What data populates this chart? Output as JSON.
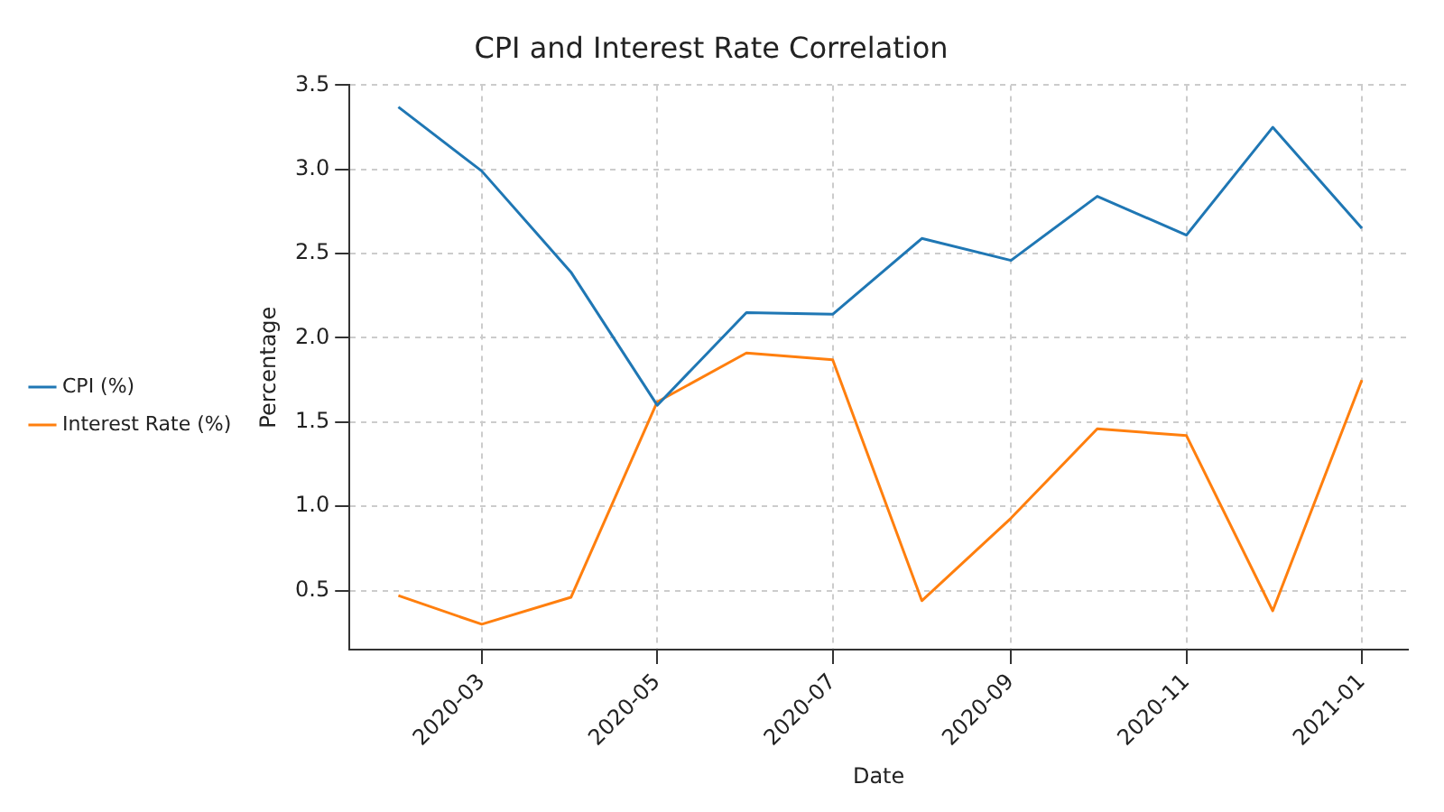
{
  "chart_data": {
    "type": "line",
    "title": "CPI and Interest Rate Correlation",
    "xlabel": "Date",
    "ylabel": "Percentage",
    "x": [
      "2020-02-01",
      "2020-03-01",
      "2020-04-01",
      "2020-05-01",
      "2020-06-01",
      "2020-07-01",
      "2020-08-01",
      "2020-09-01",
      "2020-10-01",
      "2020-11-01",
      "2020-12-01",
      "2021-01-01"
    ],
    "series": [
      {
        "name": "CPI (%)",
        "color": "#1f77b4",
        "values": [
          3.37,
          2.99,
          2.39,
          1.6,
          2.15,
          2.14,
          2.59,
          2.46,
          2.84,
          2.61,
          3.25,
          2.65
        ]
      },
      {
        "name": "Interest Rate (%)",
        "color": "#ff7f0e",
        "values": [
          0.47,
          0.3,
          0.46,
          1.62,
          1.91,
          1.87,
          0.44,
          0.93,
          1.46,
          1.42,
          0.38,
          1.75
        ]
      }
    ],
    "xlim": [
      "2020-01-15",
      "2021-01-17"
    ],
    "xticks": [
      "2020-03",
      "2020-05",
      "2020-07",
      "2020-09",
      "2020-11",
      "2021-01"
    ],
    "ylim": [
      0.15,
      3.5
    ],
    "yticks": [
      0.5,
      {
        "value": 1,
        "label": "1.0"
      },
      1.5,
      {
        "value": 2,
        "label": "2.0"
      },
      2.5,
      {
        "value": 3,
        "label": "3.0"
      },
      3.5
    ],
    "grid": true,
    "legend": "left",
    "marker": "none",
    "line_style": "solid"
  }
}
